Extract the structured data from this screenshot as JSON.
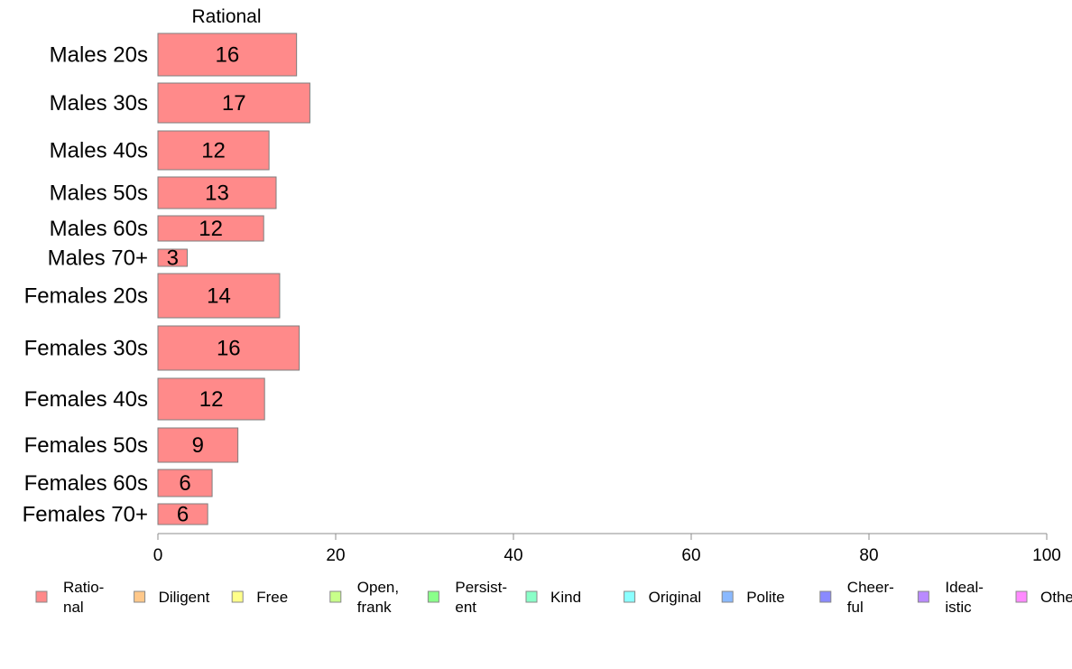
{
  "chart_data": {
    "type": "bar",
    "orientation": "horizontal",
    "title": "Rational",
    "categories": [
      "Males 20s",
      "Males 30s",
      "Males 40s",
      "Males 50s",
      "Males 60s",
      "Males 70+",
      "Females 20s",
      "Females 30s",
      "Females 40s",
      "Females 50s",
      "Females 60s",
      "Females 70+"
    ],
    "series": [
      {
        "name": "Rational",
        "values": [
          15.6,
          17.1,
          12.5,
          13.3,
          11.9,
          3.3,
          13.7,
          15.9,
          12.0,
          9.0,
          6.1,
          5.6
        ]
      }
    ],
    "data_labels": [
      "16",
      "17",
      "12",
      "13",
      "12",
      "3",
      "14",
      "16",
      "12",
      "9",
      "6",
      "6"
    ],
    "xlim": [
      0,
      100
    ],
    "x_ticks": [
      "0",
      "20",
      "40",
      "60",
      "80",
      "100"
    ],
    "grid": false,
    "legend": {
      "position": "bottom",
      "items": [
        {
          "lines": [
            "Ratio-",
            "nal"
          ],
          "color": "#FF8A8A"
        },
        {
          "lines": [
            "Diligent"
          ],
          "color": "#FFC88A"
        },
        {
          "lines": [
            "Free"
          ],
          "color": "#FFFF8A"
        },
        {
          "lines": [
            "Open,",
            "frank"
          ],
          "color": "#C8FF8A"
        },
        {
          "lines": [
            "Persist-",
            "ent"
          ],
          "color": "#8AFF8A"
        },
        {
          "lines": [
            "Kind"
          ],
          "color": "#8AFFC8"
        },
        {
          "lines": [
            "Original"
          ],
          "color": "#8AFFFF"
        },
        {
          "lines": [
            "Polite"
          ],
          "color": "#8AB9FF"
        },
        {
          "lines": [
            "Cheer-",
            "ful"
          ],
          "color": "#8A8AFF"
        },
        {
          "lines": [
            "Ideal-",
            "istic"
          ],
          "color": "#B98AFF"
        },
        {
          "lines": [
            "Other"
          ],
          "color": "#FF8AFF"
        }
      ]
    },
    "colors": {
      "bar": "#FF8A8A",
      "bar_border": "#7F7F7F",
      "axis": "#8C8C8C"
    }
  }
}
